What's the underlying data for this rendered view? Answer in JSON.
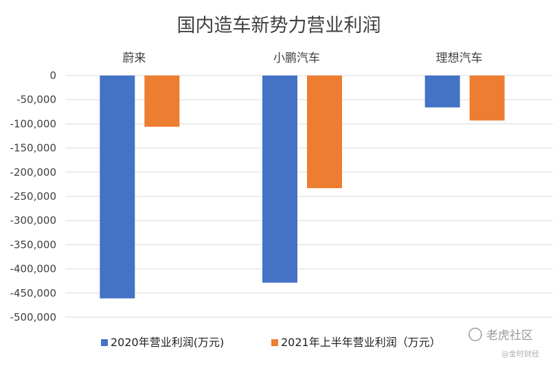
{
  "chart_data": {
    "type": "bar",
    "title": "国内造车新势力营业利润",
    "categories": [
      "蔚来",
      "小鹏汽车",
      "理想汽车"
    ],
    "series": [
      {
        "name": "2020年营业利润(万元)",
        "color": "#4472C4",
        "values": [
          -461000,
          -428500,
          -66000
        ]
      },
      {
        "name": "2021年上半年营业利润（万元）",
        "color": "#ED7D31",
        "values": [
          -106000,
          -233000,
          -93000
        ]
      }
    ],
    "ylim": [
      -500000,
      0
    ],
    "yticks": [
      0,
      -50000,
      -100000,
      -150000,
      -200000,
      -250000,
      -300000,
      -350000,
      -400000,
      -450000,
      -500000
    ],
    "ytick_labels": [
      "0",
      "-50,000",
      "-100,000",
      "-150,000",
      "-200,000",
      "-250,000",
      "-300,000",
      "-350,000",
      "-400,000",
      "-450,000",
      "-500,000"
    ],
    "grid": true,
    "legend_position": "bottom",
    "category_labels_position": "top"
  },
  "watermark": {
    "main": "老虎社区",
    "sub": "@金时财经",
    "icon": "tiger-logo-icon"
  }
}
